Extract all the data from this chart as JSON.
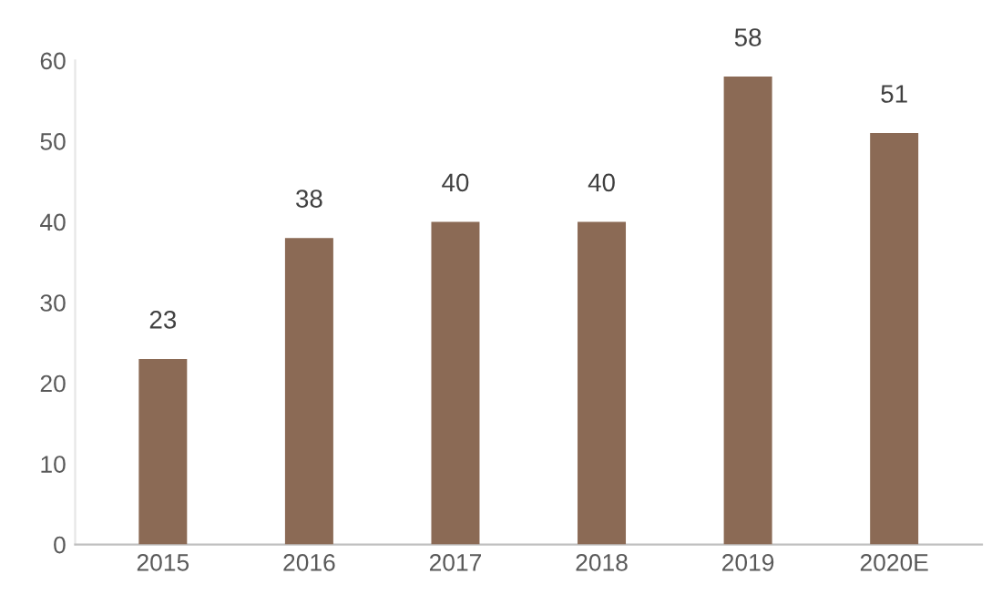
{
  "chart_data": {
    "type": "bar",
    "categories": [
      "2015",
      "2016",
      "2017",
      "2018",
      "2019",
      "2020E"
    ],
    "values": [
      23,
      38,
      40,
      40,
      58,
      51
    ],
    "color": "#8b6a55",
    "ylim": [
      0,
      60
    ],
    "yticks": [
      0,
      10,
      20,
      30,
      40,
      50,
      60
    ],
    "data_labels": true,
    "grid": false
  }
}
